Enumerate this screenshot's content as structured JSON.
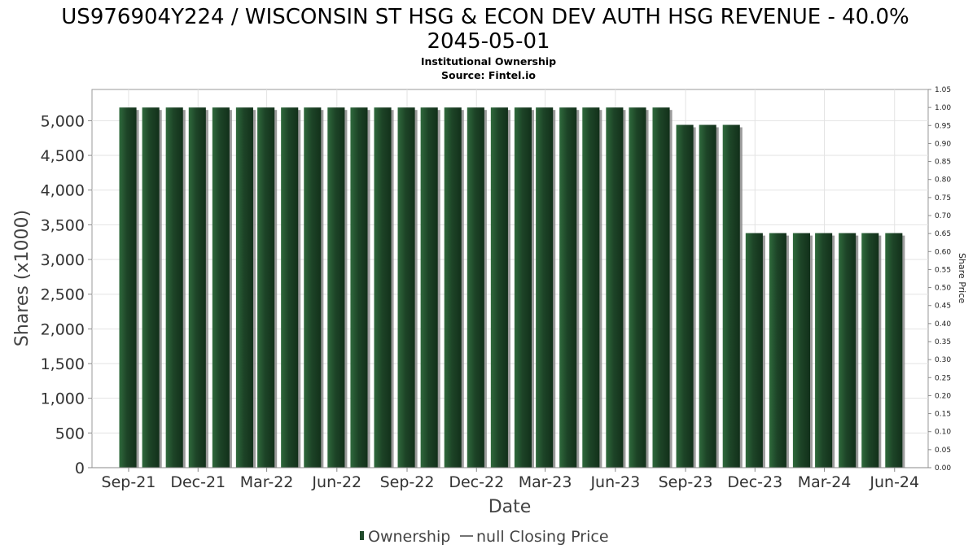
{
  "chart_data": {
    "type": "bar",
    "title_line1": "US976904Y224 / WISCONSIN ST HSG & ECON DEV AUTH HSG REVENUE - 40.0%",
    "title_line2": "2045-05-01",
    "subtitle_line1": "Institutional Ownership",
    "subtitle_line2": "Source: Fintel.io",
    "xlabel": "Date",
    "ylabel": "Shares (x1000)",
    "ylabel_right": "Share Price",
    "ylim": [
      0,
      5450
    ],
    "ylim_right": [
      0,
      1.05
    ],
    "y_ticks": [
      0,
      500,
      1000,
      1500,
      2000,
      2500,
      3000,
      3500,
      4000,
      4500,
      5000
    ],
    "y_tick_labels": [
      "0",
      "500",
      "1,000",
      "1,500",
      "2,000",
      "2,500",
      "3,000",
      "3,500",
      "4,000",
      "4,500",
      "5,000"
    ],
    "y_ticks_right": [
      0.0,
      0.05,
      0.1,
      0.15,
      0.2,
      0.25,
      0.3,
      0.35,
      0.4,
      0.45,
      0.5,
      0.55,
      0.6,
      0.65,
      0.7,
      0.75,
      0.8,
      0.85,
      0.9,
      0.95,
      1.0,
      1.05
    ],
    "y_tick_labels_right": [
      "0.00",
      "0.05",
      "0.10",
      "0.15",
      "0.20",
      "0.25",
      "0.30",
      "0.35",
      "0.40",
      "0.45",
      "0.50",
      "0.55",
      "0.60",
      "0.65",
      "0.70",
      "0.75",
      "0.80",
      "0.85",
      "0.90",
      "0.95",
      "1.00",
      "1.05"
    ],
    "x_tick_labels": [
      "Sep-21",
      "Dec-21",
      "Mar-22",
      "Jun-22",
      "Sep-22",
      "Dec-22",
      "Mar-23",
      "Jun-23",
      "Sep-23",
      "Dec-23",
      "Mar-24",
      "Jun-24"
    ],
    "x_tick_months": [
      "2021-09",
      "2021-12",
      "2022-03",
      "2022-06",
      "2022-09",
      "2022-12",
      "2023-03",
      "2023-06",
      "2023-09",
      "2023-12",
      "2024-03",
      "2024-06"
    ],
    "x_range": [
      "2021-07-15",
      "2024-07-15"
    ],
    "bar_color": "#1f4a2a",
    "bar_shadow_color": "#8a8a8a",
    "grid": true,
    "legend_position": "bottom-center",
    "series": [
      {
        "name": "Ownership",
        "x": [
          "2021-08-31",
          "2021-09-30",
          "2021-10-31",
          "2021-11-30",
          "2021-12-31",
          "2022-01-31",
          "2022-02-28",
          "2022-03-31",
          "2022-04-30",
          "2022-05-31",
          "2022-06-30",
          "2022-07-31",
          "2022-08-31",
          "2022-09-30",
          "2022-10-31",
          "2022-11-30",
          "2022-12-31",
          "2023-01-31",
          "2023-02-28",
          "2023-03-31",
          "2023-04-30",
          "2023-05-31",
          "2023-06-30",
          "2023-07-31",
          "2023-08-31",
          "2023-09-30",
          "2023-10-31",
          "2023-11-30",
          "2023-12-31",
          "2024-01-31",
          "2024-02-29",
          "2024-03-31",
          "2024-04-30",
          "2024-05-31"
        ],
        "values": [
          5190,
          5190,
          5190,
          5190,
          5190,
          5190,
          5190,
          5190,
          5190,
          5190,
          5190,
          5190,
          5190,
          5190,
          5190,
          5190,
          5190,
          5190,
          5190,
          5190,
          5190,
          5190,
          5190,
          5190,
          4940,
          4940,
          4940,
          3380,
          3380,
          3380,
          3380,
          3380,
          3380,
          3380
        ]
      }
    ],
    "legend": [
      {
        "label": "Ownership",
        "marker": "bar"
      },
      {
        "label": "null Closing Price",
        "marker": "line"
      }
    ]
  }
}
